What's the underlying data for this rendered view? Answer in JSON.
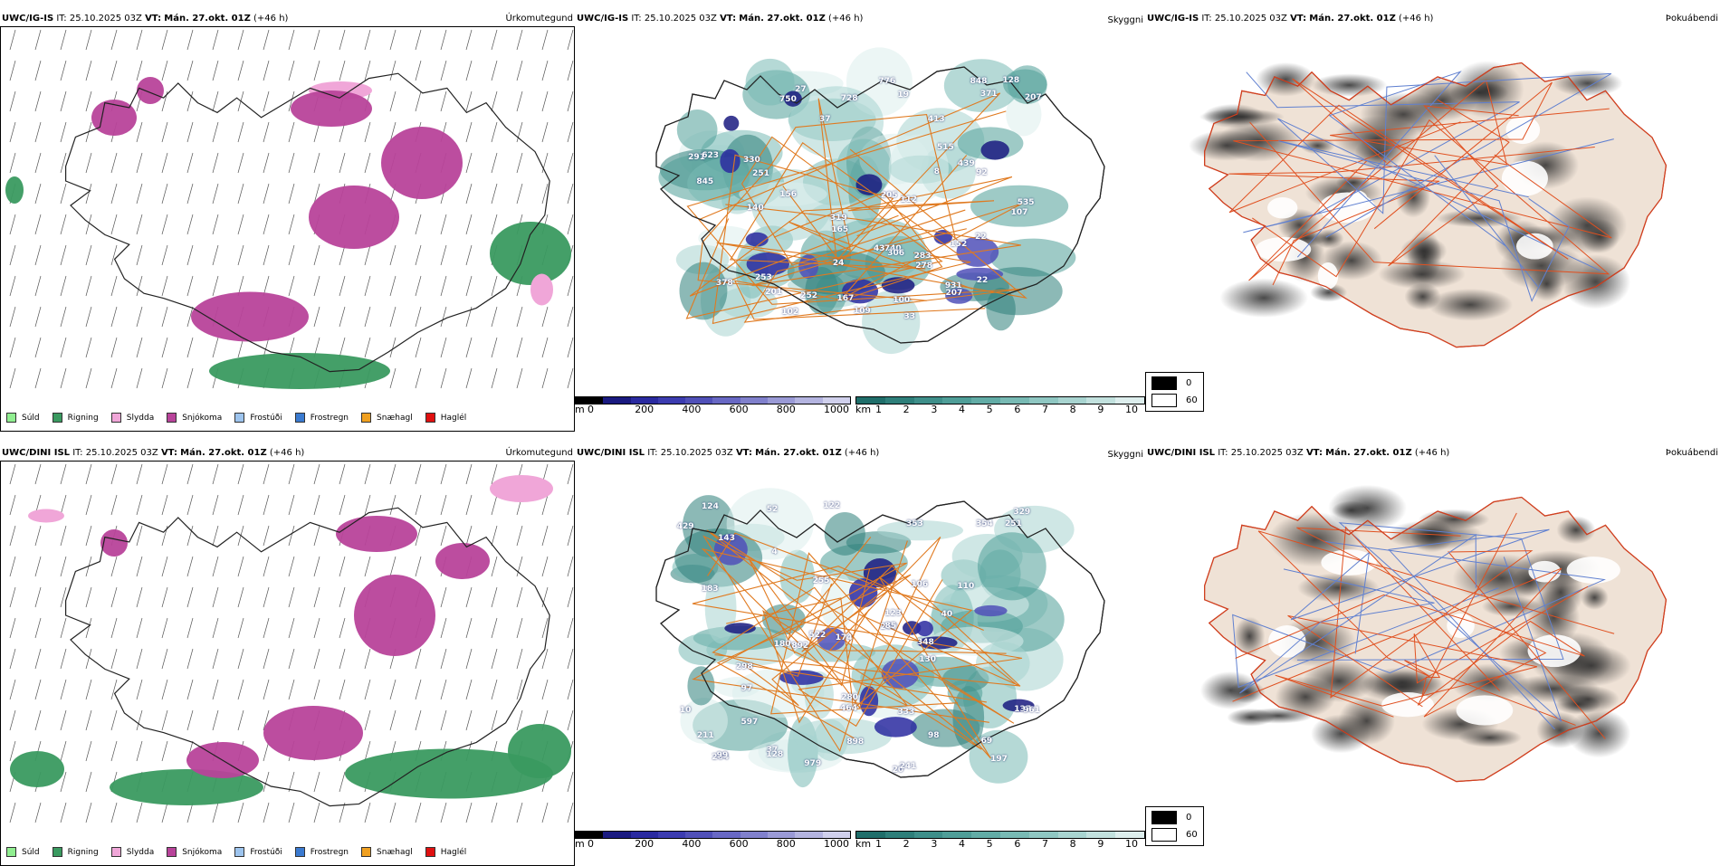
{
  "panels": {
    "p1": {
      "model": "UWC/IG-IS",
      "field": "Úrkomutegund"
    },
    "p2": {
      "model": "UWC/IG-IS",
      "field": "Skyggni"
    },
    "p3": {
      "model": "UWC/IG-IS",
      "field": "Þokuábendi"
    },
    "p4": {
      "model": "UWC/DINI ISL",
      "field": "Úrkomutegund"
    },
    "p5": {
      "model": "UWC/DINI ISL",
      "field": "Skyggni"
    },
    "p6": {
      "model": "UWC/DINI ISL",
      "field": "Þokuábendi"
    }
  },
  "common": {
    "it_label": "IT:",
    "it_value": "25.10.2025 03Z",
    "vt_label": "VT:",
    "vt_value": "Mán. 27.okt. 01Z",
    "lead": "(+46 h)"
  },
  "precip_legend": [
    {
      "label": "Súld",
      "color": "#90ee90"
    },
    {
      "label": "Rigning",
      "color": "#3a9a60"
    },
    {
      "label": "Slydda",
      "color": "#f0a6d8"
    },
    {
      "label": "Snjókoma",
      "color": "#b8439a"
    },
    {
      "label": "Frostúði",
      "color": "#9dc4ee"
    },
    {
      "label": "Frostregn",
      "color": "#3a7ad0"
    },
    {
      "label": "Snæhagl",
      "color": "#f0a020"
    },
    {
      "label": "Haglél",
      "color": "#e01010"
    }
  ],
  "ceiling_bar": {
    "unit": "m",
    "ticks": [
      "0",
      "200",
      "400",
      "600",
      "800",
      "1000"
    ],
    "colors": [
      "#000000",
      "#1a1a80",
      "#2a2aa0",
      "#3c3cb0",
      "#5050b8",
      "#6868c4",
      "#8080cc",
      "#9a9ad6",
      "#b4b4e0",
      "#d0d0ec"
    ]
  },
  "vis_bar": {
    "unit": "km",
    "ticks": [
      "1",
      "2",
      "3",
      "4",
      "5",
      "6",
      "7",
      "8",
      "9",
      "10"
    ],
    "colors": [
      "#1f6e6a",
      "#2e7f7a",
      "#3e8f8a",
      "#4f9e98",
      "#62aca6",
      "#78bab4",
      "#8fc7c2",
      "#a8d4d0",
      "#c2e1de",
      "#ddeeed"
    ]
  },
  "fog_legend": [
    {
      "label": "0",
      "color": "#000000"
    },
    {
      "label": "60",
      "color": "#ffffff"
    }
  ],
  "ceiling_labels_top": [
    "33",
    "750",
    "253",
    "330",
    "439",
    "100",
    "107",
    "156",
    "165",
    "201",
    "378",
    "291",
    "319",
    "740",
    "8",
    "848",
    "845",
    "371",
    "152",
    "92",
    "931",
    "306",
    "102",
    "207",
    "112",
    "515",
    "140",
    "251",
    "109",
    "37",
    "278",
    "128",
    "413",
    "252",
    "27",
    "167",
    "776",
    "623",
    "535",
    "283",
    "728",
    "205",
    "207",
    "22",
    "19",
    "22",
    "43",
    "24"
  ],
  "ceiling_labels_bottom": [
    "979",
    "20",
    "37",
    "98",
    "52",
    "143",
    "180",
    "197",
    "122",
    "255",
    "354",
    "898",
    "522",
    "464",
    "353",
    "260",
    "183",
    "128",
    "892",
    "429",
    "333",
    "329",
    "123",
    "264",
    "110",
    "298",
    "10",
    "97",
    "124",
    "130",
    "174",
    "241",
    "280",
    "251",
    "597",
    "348",
    "137",
    "211",
    "106",
    "69",
    "85",
    "40",
    "961",
    "99",
    "4"
  ]
}
